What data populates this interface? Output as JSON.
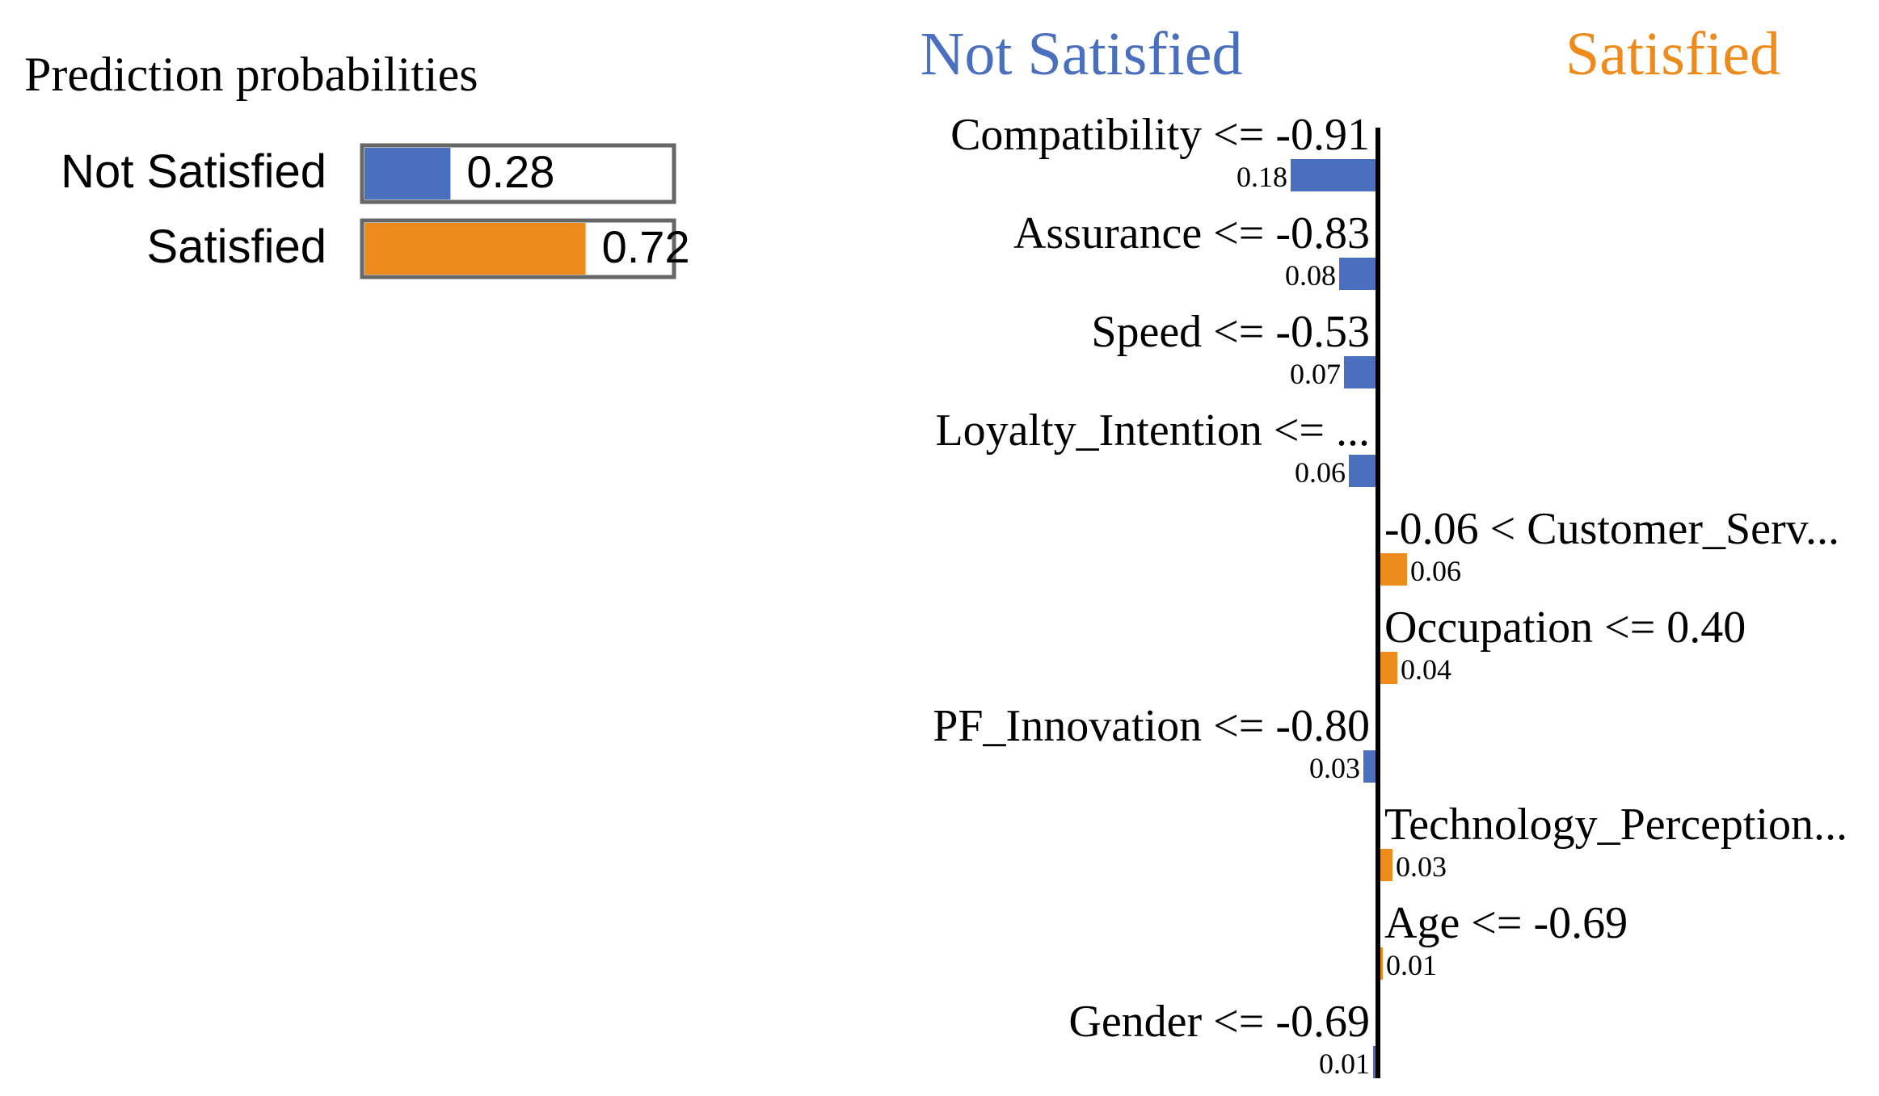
{
  "chart_data": [
    {
      "type": "bar",
      "title": "Prediction probabilities",
      "categories": [
        "Not Satisfied",
        "Satisfied"
      ],
      "values": [
        0.28,
        0.72
      ],
      "value_labels": [
        "0.28",
        "0.72"
      ],
      "xlim": [
        0,
        1
      ],
      "colors": [
        "#4a6fbe",
        "#ed8c1c"
      ]
    },
    {
      "type": "bar",
      "orientation": "horizontal-diverging",
      "negative_class": "Not Satisfied",
      "positive_class": "Satisfied",
      "features": [
        {
          "label": "Compatibility <= -0.91",
          "weight": -0.18,
          "value_label": "0.18"
        },
        {
          "label": "Assurance <= -0.83",
          "weight": -0.08,
          "value_label": "0.08"
        },
        {
          "label": "Speed <= -0.53",
          "weight": -0.07,
          "value_label": "0.07"
        },
        {
          "label": "Loyalty_Intention <= ...",
          "weight": -0.06,
          "value_label": "0.06"
        },
        {
          "label": "-0.06 < Customer_Serv...",
          "weight": 0.06,
          "value_label": "0.06"
        },
        {
          "label": "Occupation <= 0.40",
          "weight": 0.04,
          "value_label": "0.04"
        },
        {
          "label": "PF_Innovation <= -0.80",
          "weight": -0.03,
          "value_label": "0.03"
        },
        {
          "label": "Technology_Perception...",
          "weight": 0.03,
          "value_label": "0.03"
        },
        {
          "label": "Age <= -0.69",
          "weight": 0.01,
          "value_label": "0.01"
        },
        {
          "label": "Gender <= -0.69",
          "weight": -0.01,
          "value_label": "0.01"
        }
      ],
      "colors": {
        "negative": "#4a6fbe",
        "positive": "#ed8c1c",
        "axis": "#000000"
      }
    }
  ]
}
